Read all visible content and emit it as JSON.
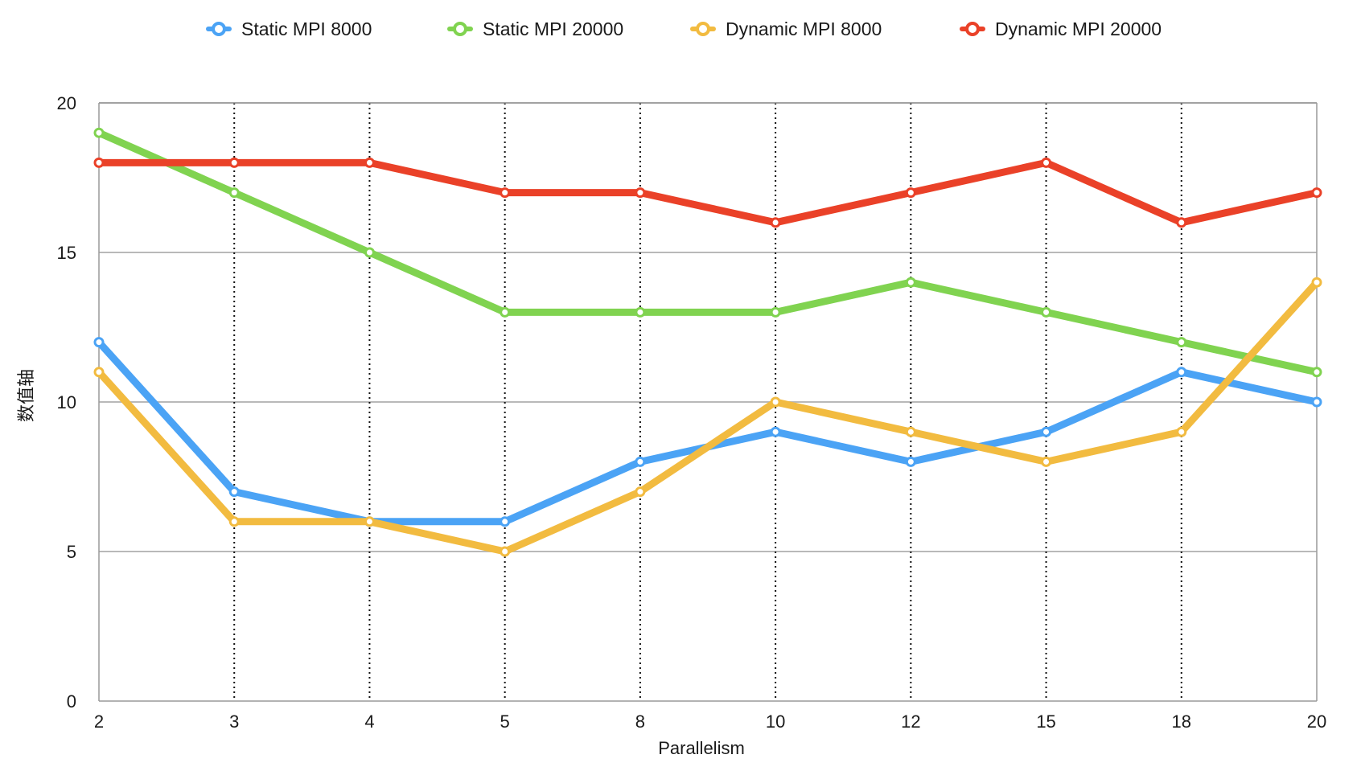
{
  "chart_data": {
    "type": "line",
    "title": "",
    "xlabel": "Parallelism",
    "ylabel": "数值轴",
    "categories": [
      "2",
      "3",
      "4",
      "5",
      "8",
      "10",
      "12",
      "15",
      "18",
      "20"
    ],
    "ylim": [
      0,
      20
    ],
    "yticks": [
      "0",
      "5",
      "10",
      "15",
      "20"
    ],
    "grid": {
      "horizontal": "solid",
      "vertical": "dotted"
    },
    "legend_position": "top",
    "series": [
      {
        "name": "Static MPI 8000",
        "color": "#4BA3F5",
        "values": [
          12,
          7,
          6,
          6,
          8,
          9,
          8,
          9,
          11,
          10
        ]
      },
      {
        "name": "Static MPI 20000",
        "color": "#80D350",
        "values": [
          19,
          17,
          15,
          13,
          13,
          13,
          14,
          13,
          12,
          11
        ]
      },
      {
        "name": "Dynamic MPI 8000",
        "color": "#F2BB40",
        "values": [
          11,
          6,
          6,
          5,
          7,
          10,
          9,
          8,
          9,
          14
        ]
      },
      {
        "name": "Dynamic MPI 20000",
        "color": "#EA4128",
        "values": [
          18,
          18,
          18,
          17,
          17,
          16,
          17,
          18,
          16,
          17
        ]
      }
    ]
  }
}
